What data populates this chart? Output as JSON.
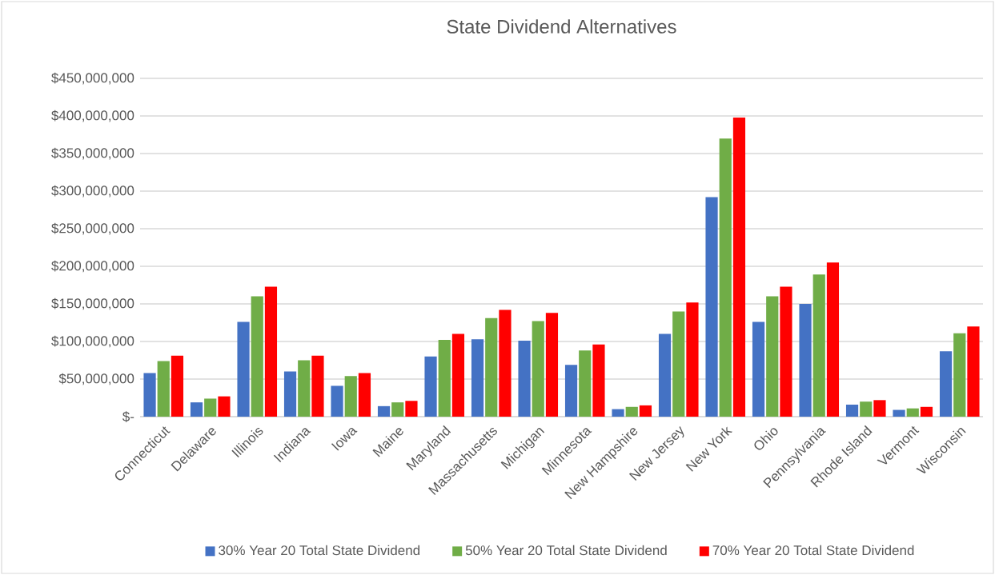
{
  "chart_data": {
    "type": "bar",
    "title": "State Dividend Alternatives",
    "categories": [
      "Connecticut",
      "Delaware",
      "Illinois",
      "Indiana",
      "Iowa",
      "Maine",
      "Maryland",
      "Massachusetts",
      "Michigan",
      "Minnesota",
      "New Hampshire",
      "New Jersey",
      "New York",
      "Ohio",
      "Pennsylvania",
      "Rhode Island",
      "Vermont",
      "Wisconsin"
    ],
    "series": [
      {
        "name": "30% Year 20 Total State Dividend",
        "color": "#4472c4",
        "values": [
          58000000,
          19000000,
          126000000,
          60000000,
          41000000,
          14000000,
          80000000,
          103000000,
          101000000,
          69000000,
          10000000,
          110000000,
          292000000,
          126000000,
          150000000,
          16000000,
          9000000,
          87000000
        ]
      },
      {
        "name": "50% Year 20 Total State Dividend",
        "color": "#70ad47",
        "values": [
          74000000,
          24000000,
          160000000,
          75000000,
          54000000,
          19000000,
          102000000,
          131000000,
          127000000,
          88000000,
          13000000,
          140000000,
          370000000,
          160000000,
          189000000,
          20000000,
          11000000,
          111000000
        ]
      },
      {
        "name": "70% Year 20 Total State Dividend",
        "color": "#ff0000",
        "values": [
          81000000,
          27000000,
          173000000,
          81000000,
          58000000,
          21000000,
          110000000,
          142000000,
          138000000,
          96000000,
          15000000,
          152000000,
          398000000,
          173000000,
          205000000,
          22000000,
          13000000,
          120000000
        ]
      }
    ],
    "ylim": [
      0,
      450000000
    ],
    "yticks": [
      {
        "value": 0,
        "label": "$-"
      },
      {
        "value": 50000000,
        "label": "$50,000,000"
      },
      {
        "value": 100000000,
        "label": "$100,000,000"
      },
      {
        "value": 150000000,
        "label": "$150,000,000"
      },
      {
        "value": 200000000,
        "label": "$200,000,000"
      },
      {
        "value": 250000000,
        "label": "$250,000,000"
      },
      {
        "value": 300000000,
        "label": "$300,000,000"
      },
      {
        "value": 350000000,
        "label": "$350,000,000"
      },
      {
        "value": 400000000,
        "label": "$400,000,000"
      },
      {
        "value": 450000000,
        "label": "$450,000,000"
      }
    ],
    "grid": "y",
    "legend": "bottom"
  }
}
